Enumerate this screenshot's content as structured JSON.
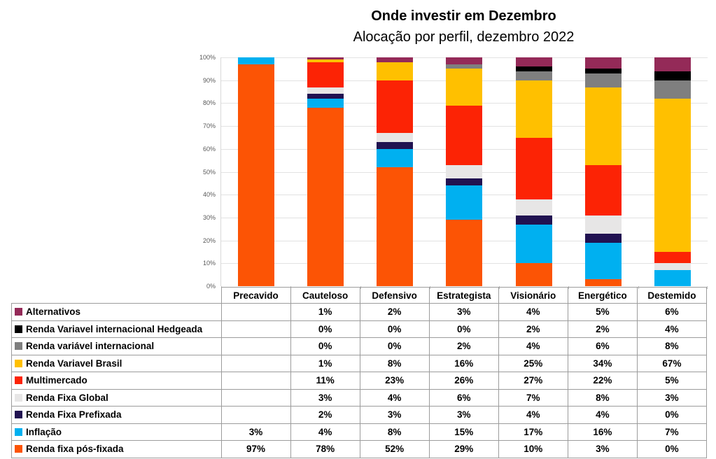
{
  "chart_data": {
    "type": "bar",
    "subtype": "stacked-100-percent",
    "title": "Onde investir em Dezembro",
    "subtitle": "Alocação por perfil, dezembro 2022",
    "categories": [
      "Precavido",
      "Cauteloso",
      "Defensivo",
      "Estrategista",
      "Visionário",
      "Energético",
      "Destemido"
    ],
    "unit": "%",
    "ylim": [
      0,
      100
    ],
    "yticks": [
      "0%",
      "10%",
      "20%",
      "30%",
      "40%",
      "50%",
      "60%",
      "70%",
      "80%",
      "90%",
      "100%"
    ],
    "grid": true,
    "legend_position": "table-rows-below-chart",
    "series": [
      {
        "name": "Alternativos",
        "color": "#942A58",
        "values": [
          0,
          1,
          2,
          3,
          4,
          5,
          6
        ],
        "labels": [
          "",
          "1%",
          "2%",
          "3%",
          "4%",
          "5%",
          "6%"
        ]
      },
      {
        "name": "Renda Variavel internacional Hedgeada",
        "color": "#000000",
        "values": [
          0,
          0,
          0,
          0,
          2,
          2,
          4
        ],
        "labels": [
          "",
          "0%",
          "0%",
          "0%",
          "2%",
          "2%",
          "4%"
        ]
      },
      {
        "name": "Renda variável internacional",
        "color": "#7F7F7F",
        "values": [
          0,
          0,
          0,
          2,
          4,
          6,
          8
        ],
        "labels": [
          "",
          "0%",
          "0%",
          "2%",
          "4%",
          "6%",
          "8%"
        ]
      },
      {
        "name": "Renda Variavel Brasil",
        "color": "#FFC000",
        "values": [
          0,
          1,
          8,
          16,
          25,
          34,
          67
        ],
        "labels": [
          "",
          "1%",
          "8%",
          "16%",
          "25%",
          "34%",
          "67%"
        ]
      },
      {
        "name": "Multimercado",
        "color": "#FC2305",
        "values": [
          0,
          11,
          23,
          26,
          27,
          22,
          5
        ],
        "labels": [
          "",
          "11%",
          "23%",
          "26%",
          "27%",
          "22%",
          "5%"
        ]
      },
      {
        "name": "Renda Fixa Global",
        "color": "#E7E6E6",
        "values": [
          0,
          3,
          4,
          6,
          7,
          8,
          3
        ],
        "labels": [
          "",
          "3%",
          "4%",
          "6%",
          "7%",
          "8%",
          "3%"
        ]
      },
      {
        "name": "Renda Fixa Prefixada",
        "color": "#211251",
        "values": [
          0,
          2,
          3,
          3,
          4,
          4,
          0
        ],
        "labels": [
          "",
          "2%",
          "3%",
          "3%",
          "4%",
          "4%",
          "0%"
        ]
      },
      {
        "name": "Inflação",
        "color": "#00B0F0",
        "values": [
          3,
          4,
          8,
          15,
          17,
          16,
          7
        ],
        "labels": [
          "3%",
          "4%",
          "8%",
          "15%",
          "17%",
          "16%",
          "7%"
        ]
      },
      {
        "name": "Renda fixa pós-fixada",
        "color": "#FC5405",
        "values": [
          97,
          78,
          52,
          29,
          10,
          3,
          0
        ],
        "labels": [
          "97%",
          "78%",
          "52%",
          "29%",
          "10%",
          "3%",
          "0%"
        ]
      }
    ],
    "style": {
      "gridline_color": "#E2E2E2",
      "axis_label_color": "#595959",
      "table_border_color": "#9C9C9C"
    }
  }
}
